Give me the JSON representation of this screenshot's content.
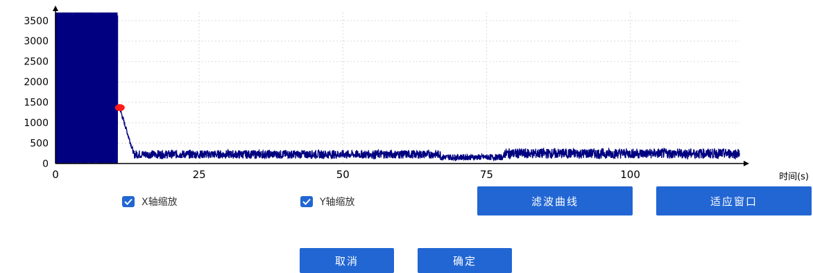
{
  "chart_data": {
    "type": "line",
    "title": "",
    "xlabel": "时间(s)",
    "ylabel": "",
    "xlim": [
      0,
      119
    ],
    "ylim": [
      0,
      3700
    ],
    "xticks": [
      0,
      25,
      50,
      75,
      100
    ],
    "yticks": [
      0,
      500,
      1000,
      1500,
      2000,
      2500,
      3000,
      3500
    ],
    "grid": true,
    "series": [
      {
        "name": "",
        "color": "#000080",
        "segments": [
          {
            "x_start": 0,
            "x_end": 10.8,
            "min": 0,
            "max": 3700,
            "note_value": "dense oscillation 0-3700"
          },
          {
            "x_start": 10.8,
            "x_end": 11.3,
            "min": 1300,
            "max": 1400
          },
          {
            "x_start": 11.3,
            "x_end": 13.5,
            "min": 300,
            "max": 1300
          },
          {
            "x_start": 13.5,
            "x_end": 67,
            "min": 120,
            "max": 330
          },
          {
            "x_start": 67,
            "x_end": 78,
            "min": 80,
            "max": 230
          },
          {
            "x_start": 78,
            "x_end": 119,
            "min": 120,
            "max": 370
          }
        ]
      }
    ],
    "marker": {
      "x": 11.2,
      "y": 1370,
      "color": "#ff1a1a"
    }
  },
  "controls": {
    "x_zoom_label": "X轴缩放",
    "y_zoom_label": "Y轴缩放",
    "x_zoom_checked": true,
    "y_zoom_checked": true,
    "filter_label": "滤波曲线",
    "fit_label": "适应窗口",
    "cancel_label": "取消",
    "confirm_label": "确定"
  },
  "colors": {
    "accent": "#2166d3",
    "line": "#000080",
    "marker": "#ff1a1a"
  }
}
